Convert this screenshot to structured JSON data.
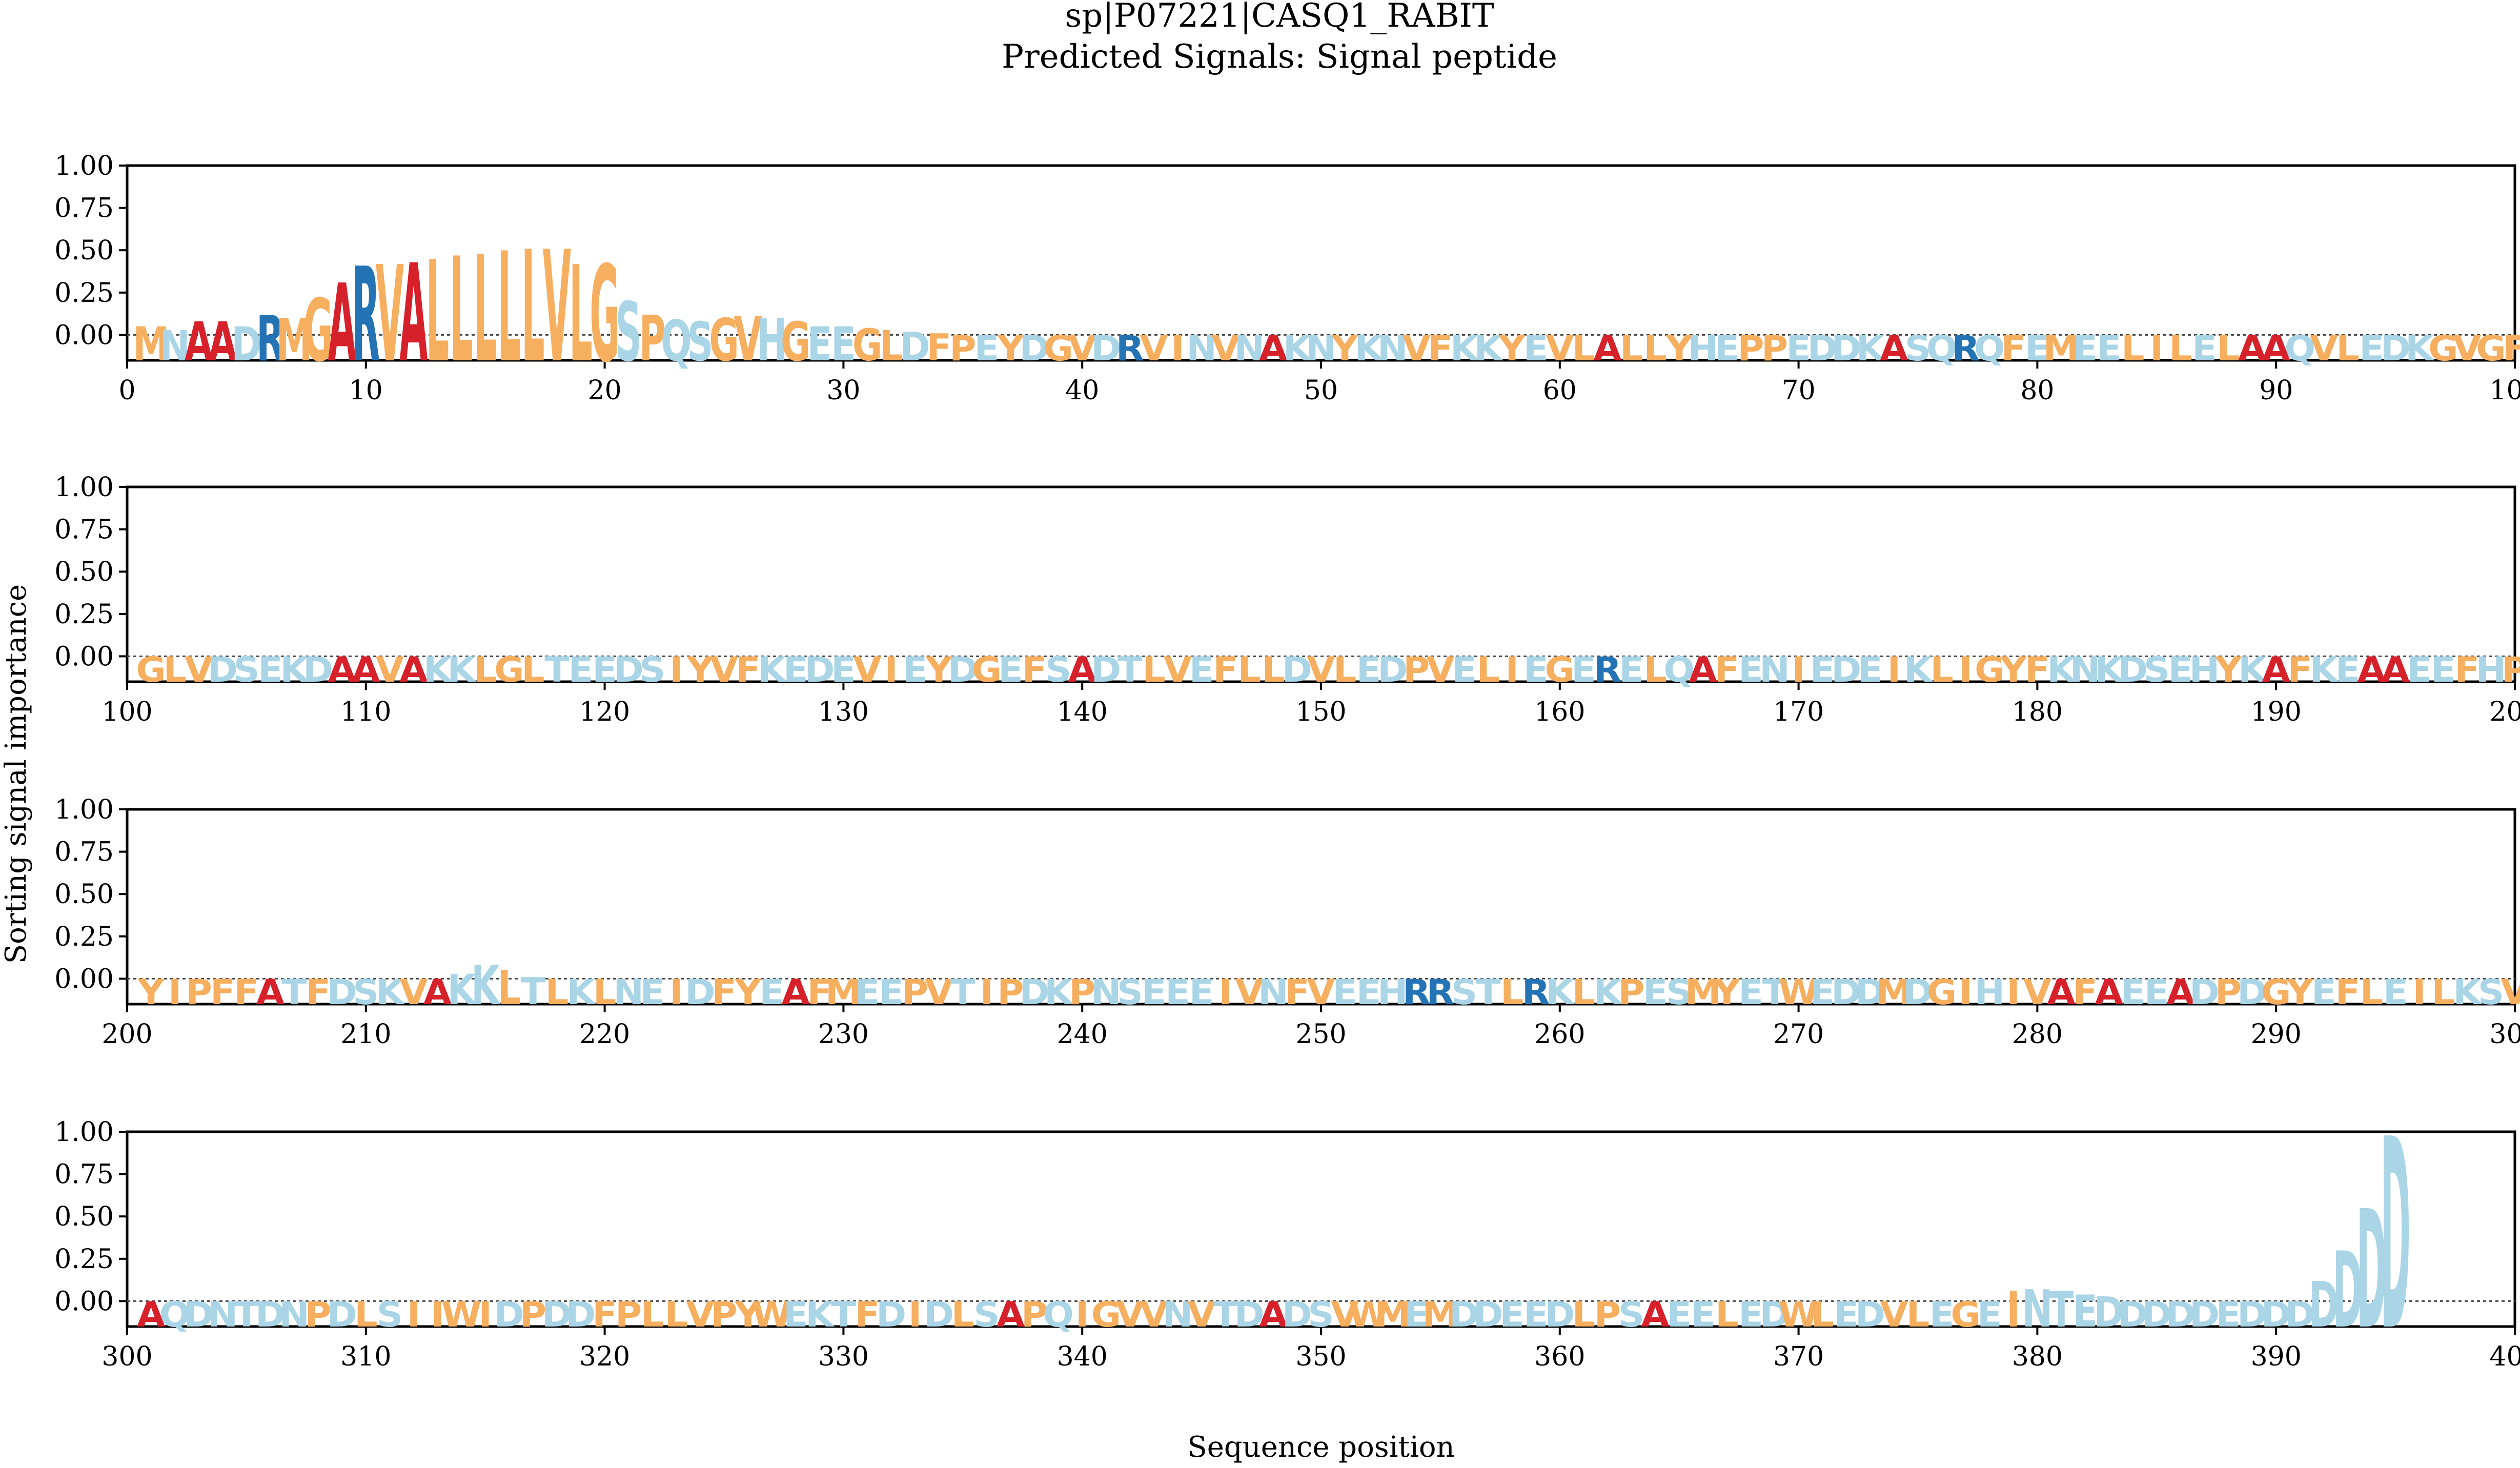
{
  "chart_data": {
    "type": "sequence-logo",
    "title_line1": "sp|P07221|CASQ1_RABIT",
    "title_line2": "Predicted Signals: Signal peptide",
    "ylabel": "Sorting signal importance",
    "xlabel": "Sequence position",
    "ylim": [
      -0.15,
      1.0
    ],
    "yticks": [
      "1.00",
      "0.75",
      "0.50",
      "0.25",
      "0.00"
    ],
    "zero_line": "dotted",
    "colors": {
      "hydrophobic": "#F6AE5F",
      "polar_charged": "#A9D5E6",
      "alanine": "#D6202A",
      "basic_R": "#2474B5"
    },
    "sequence": "MNAADRMGARVALLLLLVLGSPQSGVHGEEGLDFPEYDGVDRVINVNAKNYKNVFKKYEVLALLYHEPPEDDKASQRQFEMEELILELAAQVLEDKGVGFGLVDSEKDAAVAKKLGLTEEDSIYVFKEDEVIEYDGEFSADTLVEFLLDVLEDPVELIEGERELQAFENIEDEIKLIGYFKNKDSEHYKAFKEAAEEFHPYIPFFATFDSKVAKKLTLKLNEIDFYEAFMEEPVTIPDKPNSEEEIVNFVEEHRRSTLRKLKPESMYETWEDDMDGIHIVAFAEEADPDGYEFLEILKSVAQDNTDNPDLSIIWIDPDDFPLLVPYWEKTFDIDLSAPQIGVVNVTDADSVWMEMDDEEDLPSAEELEDWLEDVLEGEINTEDDDDDEDDDDDDD",
    "panels": [
      {
        "x_range": [
          0,
          100
        ],
        "xticks": [
          "0",
          "10",
          "20",
          "30",
          "40",
          "50",
          "60",
          "70",
          "80",
          "90",
          "100"
        ]
      },
      {
        "x_range": [
          100,
          200
        ],
        "xticks": [
          "100",
          "110",
          "120",
          "130",
          "140",
          "150",
          "160",
          "170",
          "180",
          "190",
          "200"
        ]
      },
      {
        "x_range": [
          200,
          300
        ],
        "xticks": [
          "200",
          "210",
          "220",
          "230",
          "240",
          "250",
          "260",
          "270",
          "280",
          "290",
          "300"
        ]
      },
      {
        "x_range": [
          300,
          400
        ],
        "xticks": [
          "300",
          "310",
          "320",
          "330",
          "340",
          "350",
          "360",
          "370",
          "380",
          "390",
          "400"
        ]
      }
    ],
    "importance": [
      {
        "position": 1,
        "value": 0.05
      },
      {
        "position": 2,
        "value": 0.03
      },
      {
        "position": 3,
        "value": 0.08
      },
      {
        "position": 4,
        "value": 0.08
      },
      {
        "position": 5,
        "value": 0.05
      },
      {
        "position": 6,
        "value": 0.12
      },
      {
        "position": 7,
        "value": 0.1
      },
      {
        "position": 8,
        "value": 0.22
      },
      {
        "position": 9,
        "value": 0.31
      },
      {
        "position": 10,
        "value": 0.41
      },
      {
        "position": 11,
        "value": 0.42
      },
      {
        "position": 12,
        "value": 0.43
      },
      {
        "position": 13,
        "value": 0.45
      },
      {
        "position": 14,
        "value": 0.47
      },
      {
        "position": 15,
        "value": 0.48
      },
      {
        "position": 16,
        "value": 0.5
      },
      {
        "position": 17,
        "value": 0.51
      },
      {
        "position": 18,
        "value": 0.51
      },
      {
        "position": 19,
        "value": 0.42
      },
      {
        "position": 20,
        "value": 0.42
      },
      {
        "position": 21,
        "value": 0.2
      },
      {
        "position": 22,
        "value": 0.12
      },
      {
        "position": 23,
        "value": 0.09
      },
      {
        "position": 24,
        "value": 0.08
      },
      {
        "position": 25,
        "value": 0.1
      },
      {
        "position": 26,
        "value": 0.11
      },
      {
        "position": 27,
        "value": 0.1
      },
      {
        "position": 28,
        "value": 0.08
      },
      {
        "position": 29,
        "value": 0.05
      },
      {
        "position": 30,
        "value": 0.05
      },
      {
        "position": 31,
        "value": 0.04
      },
      {
        "position": 32,
        "value": 0.03
      },
      {
        "position": 33,
        "value": 0.02
      },
      {
        "position": 34,
        "value": 0.01
      },
      {
        "position": 214,
        "value": 0.03
      },
      {
        "position": 215,
        "value": 0.08
      },
      {
        "position": 216,
        "value": 0.05
      },
      {
        "position": 217,
        "value": 0.01
      },
      {
        "position": 379,
        "value": 0.06
      },
      {
        "position": 380,
        "value": 0.07
      },
      {
        "position": 381,
        "value": 0.06
      },
      {
        "position": 382,
        "value": 0.04
      },
      {
        "position": 383,
        "value": 0.03
      },
      {
        "position": 392,
        "value": 0.12
      },
      {
        "position": 393,
        "value": 0.3
      },
      {
        "position": 394,
        "value": 0.55
      },
      {
        "position": 395,
        "value": 0.98
      }
    ]
  }
}
